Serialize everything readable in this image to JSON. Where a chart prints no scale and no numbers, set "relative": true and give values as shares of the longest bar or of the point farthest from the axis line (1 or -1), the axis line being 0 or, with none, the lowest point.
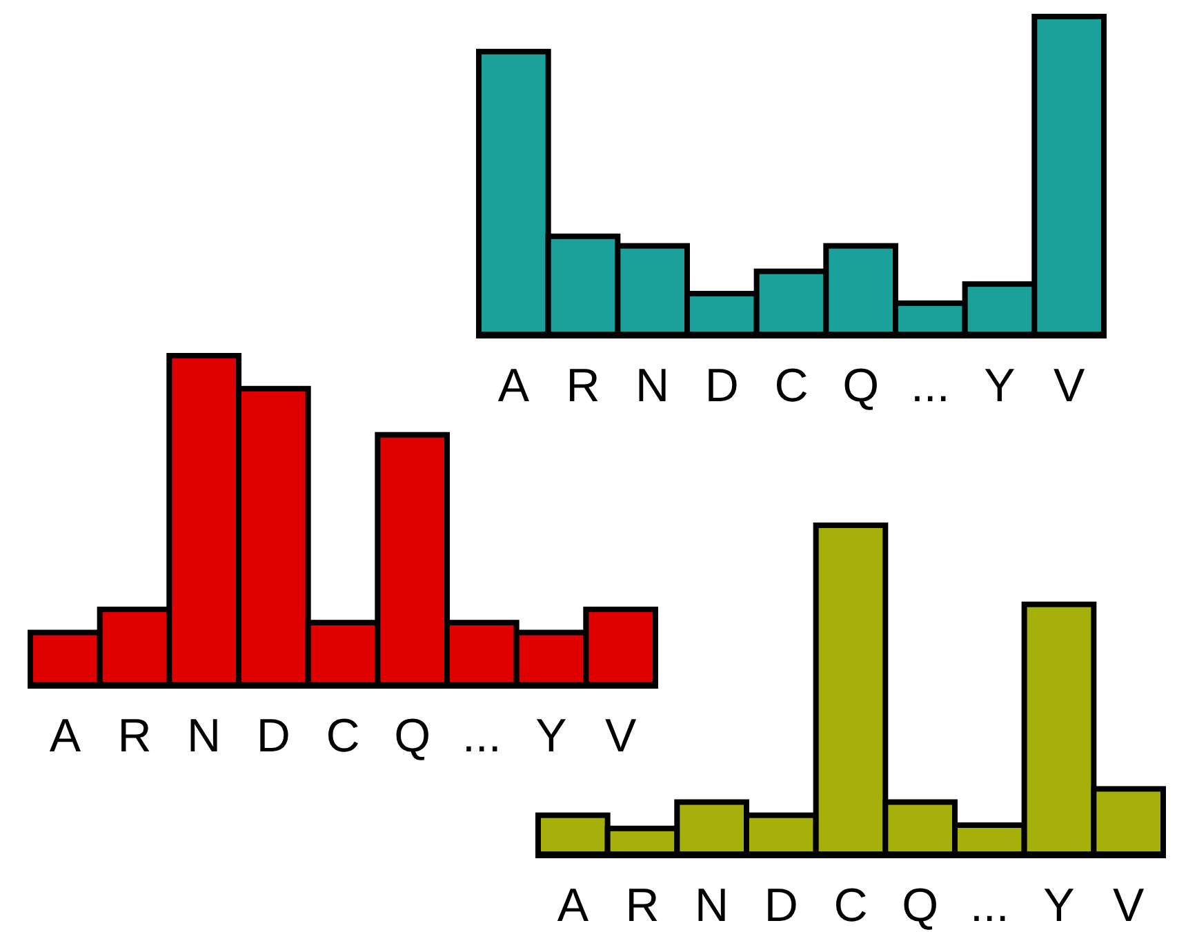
{
  "chart_data": [
    {
      "type": "bar",
      "relative": true,
      "categories": [
        "A",
        "R",
        "N",
        "D",
        "C",
        "Q",
        "...",
        "Y",
        "V"
      ],
      "values": [
        0.89,
        0.31,
        0.28,
        0.13,
        0.2,
        0.28,
        0.1,
        0.16,
        1
      ],
      "color": "#1aa19b"
    },
    {
      "type": "bar",
      "relative": true,
      "categories": [
        "A",
        "R",
        "N",
        "D",
        "C",
        "Q",
        "...",
        "Y",
        "V"
      ],
      "values": [
        0.16,
        0.23,
        1,
        0.9,
        0.19,
        0.76,
        0.19,
        0.16,
        0.23
      ],
      "color": "#e00000"
    },
    {
      "type": "bar",
      "relative": true,
      "categories": [
        "A",
        "R",
        "N",
        "D",
        "C",
        "Q",
        "...",
        "Y",
        "V"
      ],
      "values": [
        0.12,
        0.08,
        0.16,
        0.12,
        1,
        0.16,
        0.09,
        0.76,
        0.2
      ],
      "color": "#a6b00b"
    }
  ]
}
